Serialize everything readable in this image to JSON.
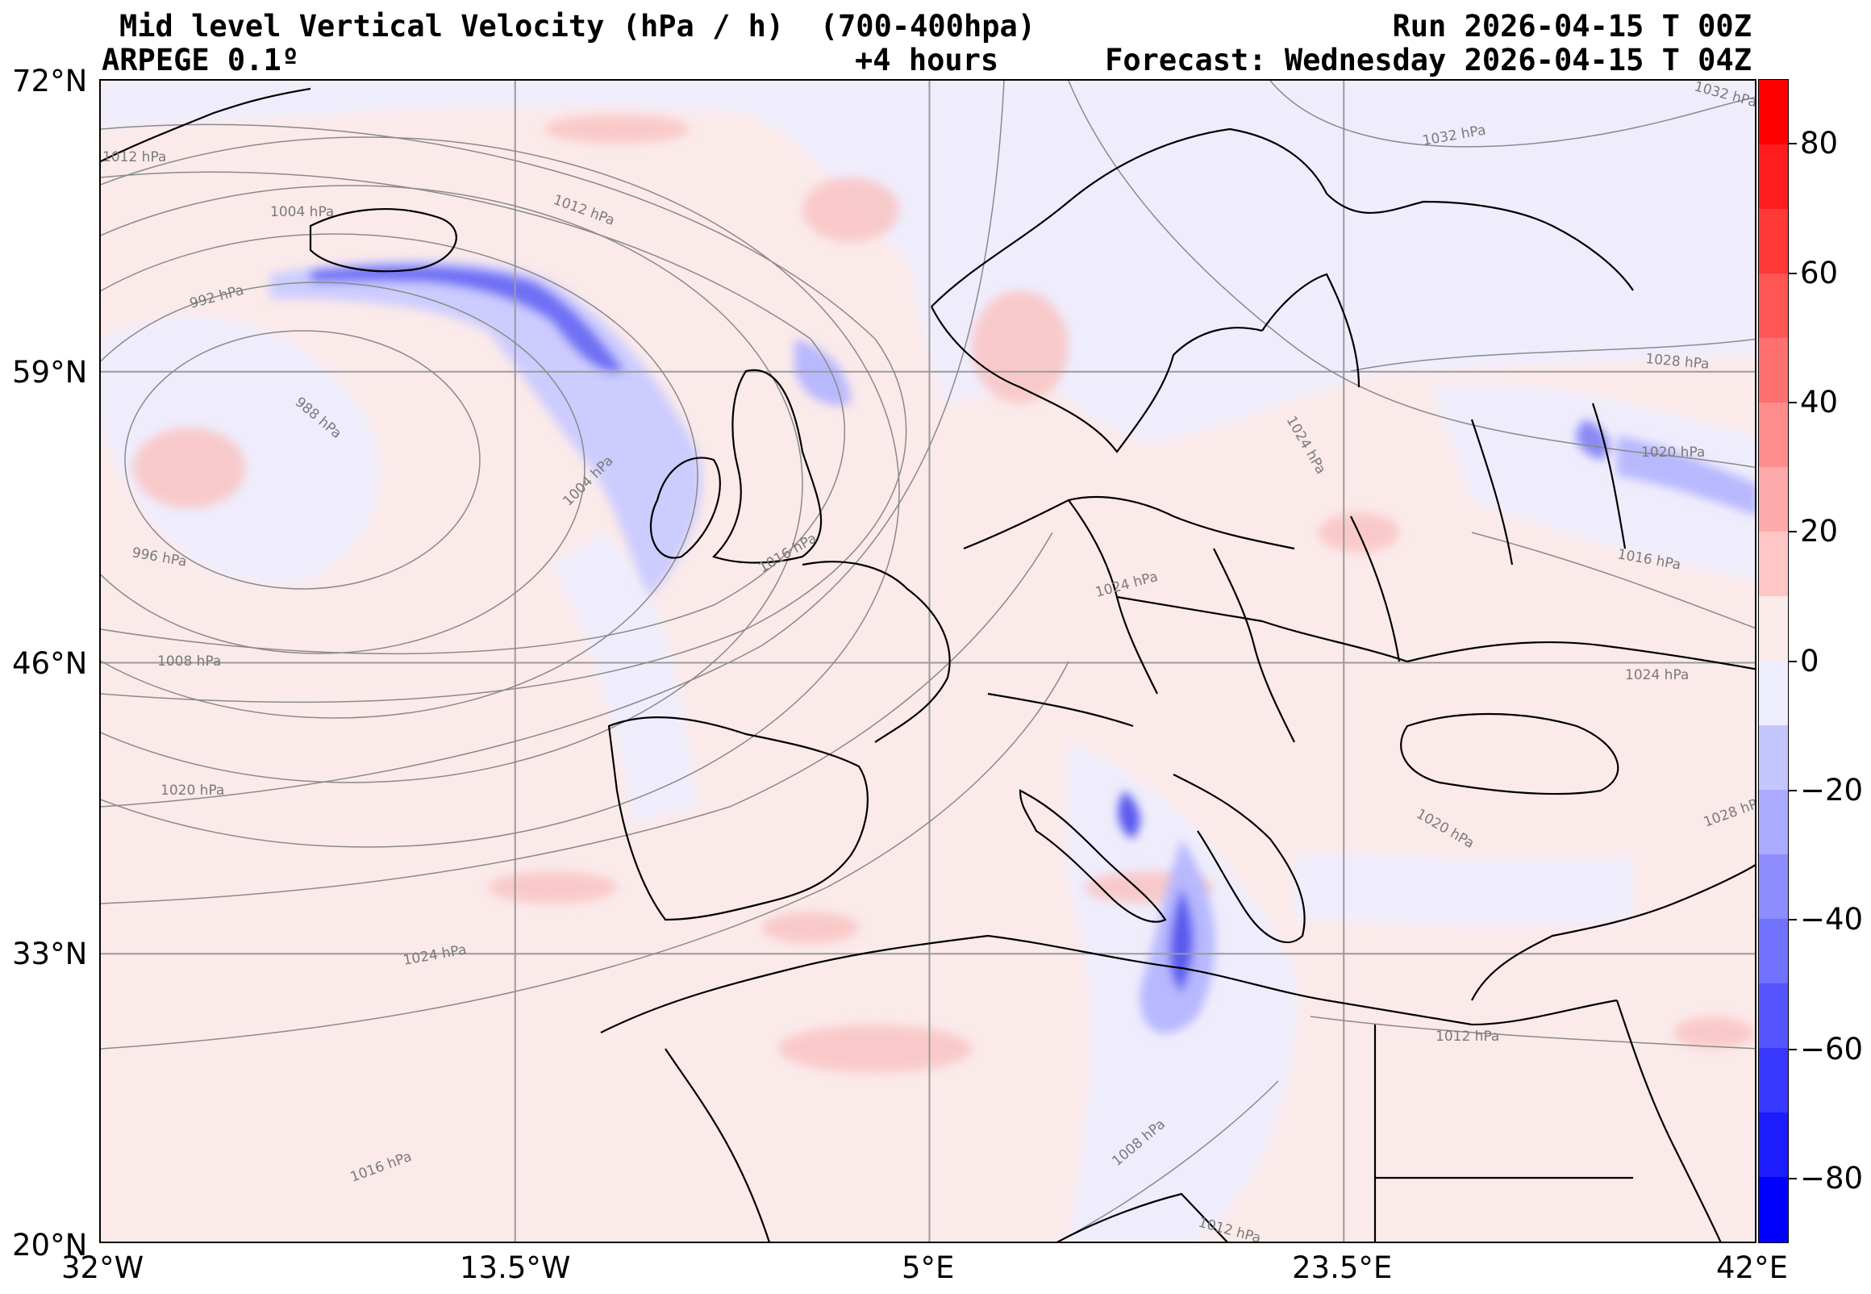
{
  "header": {
    "title": "Mid level Vertical Velocity (hPa / h)  (700-400hpa)",
    "model": "ARPEGE 0.1º",
    "lead_time": "+4 hours",
    "run": "Run 2026-04-15 T 00Z",
    "forecast": "Forecast: Wednesday 2026-04-15 T 04Z"
  },
  "map": {
    "lon_range": [
      -32,
      42
    ],
    "lat_range": [
      20,
      72
    ],
    "lat_labels": [
      {
        "value": 72,
        "text": "72°N"
      },
      {
        "value": 59,
        "text": "59°N"
      },
      {
        "value": 46,
        "text": "46°N"
      },
      {
        "value": 33,
        "text": "33°N"
      },
      {
        "value": 20,
        "text": "20°N"
      }
    ],
    "lon_labels": [
      {
        "value": -32,
        "text": "32°W"
      },
      {
        "value": -13.5,
        "text": "13.5°W"
      },
      {
        "value": 5,
        "text": "5°E"
      },
      {
        "value": 23.5,
        "text": "23.5°E"
      },
      {
        "value": 42,
        "text": "42°E"
      }
    ],
    "isobar_labels": [
      "1012 hPa",
      "1012 hPa",
      "1004 hPa",
      "992 hPa",
      "988 hPa",
      "996 hPa",
      "1008 hPa",
      "1020 hPa",
      "1024 hPa",
      "1016 hPa",
      "1004 hPa",
      "1016 hPa",
      "1032 hPa",
      "1032 hPa",
      "1028 hPa",
      "1024 hPa",
      "1020 hPa",
      "1016 hPa",
      "1024 hPa",
      "1024 hPa",
      "1020 hPa",
      "1028 hPa",
      "1012 hPa",
      "1008 hPa",
      "1012 hPa"
    ]
  },
  "colorbar": {
    "vmin": -90,
    "vmax": 90,
    "ticks": [
      {
        "value": 80,
        "text": "80"
      },
      {
        "value": 60,
        "text": "60"
      },
      {
        "value": 40,
        "text": "40"
      },
      {
        "value": 20,
        "text": "20"
      },
      {
        "value": 0,
        "text": "0"
      },
      {
        "value": -20,
        "text": "−20"
      },
      {
        "value": -40,
        "text": "−40"
      },
      {
        "value": -60,
        "text": "−60"
      },
      {
        "value": -80,
        "text": "−80"
      }
    ],
    "colors": {
      "strong_up": "#0000ff",
      "weak_up": "#eeeeff",
      "weak_down": "#fbeaea",
      "strong_down": "#ff0000"
    }
  }
}
